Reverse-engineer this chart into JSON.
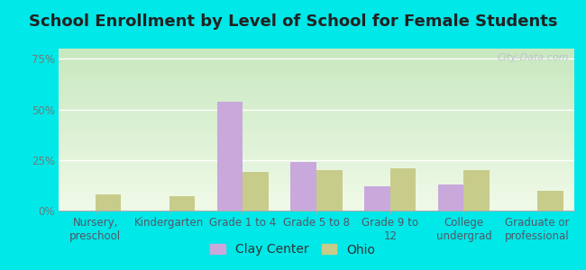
{
  "title": "School Enrollment by Level of School for Female Students",
  "categories": [
    "Nursery,\npreschool",
    "Kindergarten",
    "Grade 1 to 4",
    "Grade 5 to 8",
    "Grade 9 to\n12",
    "College\nundergrad",
    "Graduate or\nprofessional"
  ],
  "clay_center": [
    0.0,
    0.0,
    54.0,
    24.0,
    12.0,
    13.0,
    0.0
  ],
  "ohio": [
    8.0,
    7.0,
    19.0,
    20.0,
    21.0,
    20.0,
    10.0
  ],
  "clay_color": "#c9a8dc",
  "ohio_color": "#c8cc8a",
  "background_outer": "#00e8e8",
  "background_inner": "#e8f5e0",
  "ylim": [
    0,
    80
  ],
  "yticks": [
    0,
    25,
    50,
    75
  ],
  "ytick_labels": [
    "0%",
    "25%",
    "50%",
    "75%"
  ],
  "bar_width": 0.35,
  "legend_labels": [
    "Clay Center",
    "Ohio"
  ],
  "watermark": "City-Data.com",
  "title_fontsize": 13,
  "tick_fontsize": 8.5,
  "legend_fontsize": 10,
  "ytick_color": "#777777",
  "xtick_color": "#555566"
}
